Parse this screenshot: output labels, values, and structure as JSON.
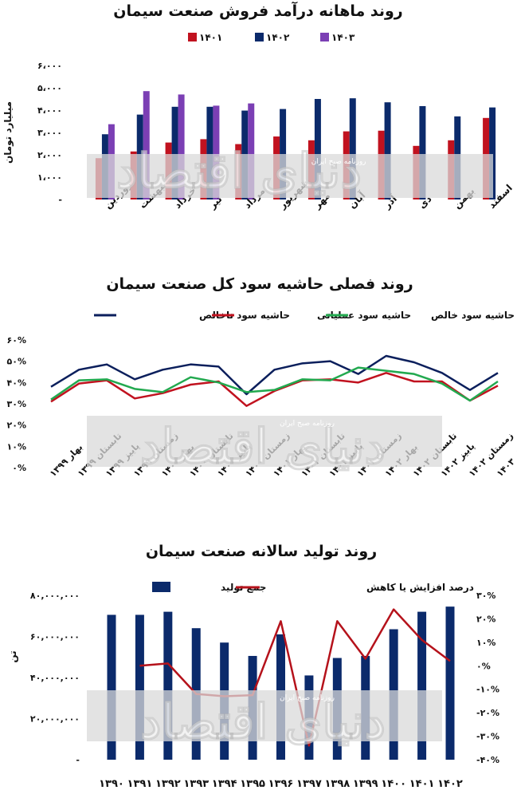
{
  "charts": [
    {
      "title": "روند ماهانه درآمد فروش صنعت سیمان",
      "ylabel": "میلیارد تومان",
      "watermark_small": "روزنامه صبح ایران",
      "watermark_big": "دنیای اقتصاد"
    },
    {
      "title": "روند فصلی حاشیه سود کل صنعت سیمان",
      "watermark_small": "روزنامه صبح ایران",
      "watermark_big": "دنیای اقتصاد"
    },
    {
      "title": "روند تولید سالانه صنعت سیمان",
      "ylabel": "تن",
      "watermark_small": "روزنامه صبح ایران",
      "watermark_big": "دنیای اقتصاد"
    }
  ],
  "chart_data": [
    {
      "type": "bar",
      "title": "روند ماهانه درآمد فروش صنعت سیمان",
      "ylabel": "میلیارد تومان",
      "xlabel": "",
      "categories": [
        "فروردین",
        "اردیبهشت",
        "خرداد",
        "تیر",
        "مرداد",
        "شهریور",
        "مهر",
        "آبان",
        "آذر",
        "دی",
        "بهمن",
        "اسفند"
      ],
      "ylim": [
        0,
        6000
      ],
      "yticks": [
        "-",
        "۱،۰۰۰",
        "۲،۰۰۰",
        "۳،۰۰۰",
        "۴،۰۰۰",
        "۵،۰۰۰",
        "۶،۰۰۰"
      ],
      "legend_position": "top",
      "series": [
        {
          "name": "۱۴۰۱",
          "color": "#c1121f",
          "values": [
            1850,
            2150,
            2550,
            2700,
            2480,
            2820,
            2650,
            3050,
            3080,
            2400,
            2650,
            3650
          ]
        },
        {
          "name": "۱۴۰۲",
          "color": "#0b2a6b",
          "values": [
            2920,
            3800,
            4150,
            4150,
            3980,
            4050,
            4500,
            4530,
            4350,
            4180,
            3720,
            4120
          ]
        },
        {
          "name": "۱۴۰۳",
          "color": "#7b3fb4",
          "values": [
            3370,
            4850,
            4700,
            4200,
            4300,
            null,
            null,
            null,
            null,
            null,
            null,
            null
          ]
        }
      ]
    },
    {
      "type": "line",
      "title": "روند فصلی حاشیه سود کل صنعت سیمان",
      "categories": [
        "بهار ۱۳۹۹",
        "تابستان ۱۳۹۹",
        "پاییز ۱۳۹۹",
        "زمستان ۱۳۹۹",
        "بهار ۱۴۰۰",
        "تابستان ۱۴۰۰",
        "پاییز ۱۴۰۰",
        "زمستان ۱۴۰۰",
        "بهار ۱۴۰۱",
        "تابستان ۱۴۰۱",
        "پاییز ۱۴۰۱",
        "زمستان ۱۴۰۱",
        "بهار ۱۴۰۲",
        "تابستان ۱۴۰۲",
        "پاییز ۱۴۰۲",
        "زمستان ۱۴۰۲",
        "بهار ۱۴۰۳"
      ],
      "ylim": [
        0,
        60
      ],
      "yticks": [
        "۰%",
        "۱۰%",
        "۲۰%",
        "۳۰%",
        "۴۰%",
        "۵۰%",
        "۶۰%"
      ],
      "legend_position": "top",
      "series": [
        {
          "name": "حاشیه سود ناخالص",
          "color": "#0b1f5c",
          "values": [
            38,
            46,
            48.5,
            41.5,
            46,
            48.5,
            47.5,
            34.5,
            46,
            49,
            50,
            44,
            52.5,
            49.5,
            44.5,
            36.5,
            44.5
          ]
        },
        {
          "name": "حاشیه سود عملیاتی",
          "color": "#c1121f",
          "values": [
            31,
            39.5,
            41,
            32.5,
            35,
            39,
            40.5,
            29,
            36,
            41,
            41.5,
            40,
            44.5,
            40.5,
            40.5,
            31.5,
            38.5
          ]
        },
        {
          "name": "حاشیه سود خالص",
          "color": "#22a94f",
          "values": [
            32,
            41,
            41.5,
            37,
            35.5,
            42.5,
            40,
            35.5,
            36.5,
            41.5,
            41,
            47,
            45.5,
            44,
            39.5,
            31.5,
            40.5
          ]
        }
      ]
    },
    {
      "type": "bar",
      "title": "روند تولید سالانه صنعت سیمان",
      "ylabel": "تن",
      "categories": [
        "۱۳۹۰",
        "۱۳۹۱",
        "۱۳۹۲",
        "۱۳۹۳",
        "۱۳۹۴",
        "۱۳۹۵",
        "۱۳۹۶",
        "۱۳۹۷",
        "۱۳۹۸",
        "۱۳۹۹",
        "۱۴۰۰",
        "۱۴۰۱",
        "۱۴۰۲"
      ],
      "ylim": [
        0,
        80000000
      ],
      "yticks": [
        "-",
        "۲۰,۰۰۰,۰۰۰",
        "۴۰,۰۰۰,۰۰۰",
        "۶۰,۰۰۰,۰۰۰",
        "۸۰,۰۰۰,۰۰۰"
      ],
      "y2lim": [
        -40,
        30
      ],
      "y2ticks": [
        "-۴۰%",
        "-۳۰%",
        "-۲۰%",
        "-۱۰%",
        "۰%",
        "۱۰%",
        "۲۰%",
        "۳۰%"
      ],
      "legend_position": "top",
      "series": [
        {
          "name": "جمع تولید",
          "color": "#0b2a6b",
          "kind": "bar",
          "values": [
            70500000,
            70500000,
            72000000,
            64000000,
            57000000,
            50500000,
            61000000,
            41000000,
            49500000,
            50500000,
            63500000,
            72000000,
            74500000
          ]
        },
        {
          "name": "درصد افزایش یا کاهش",
          "color": "#b5121b",
          "kind": "line",
          "axis": "right",
          "values": [
            null,
            0,
            1,
            -12,
            -13,
            -12.5,
            19,
            -34,
            19,
            3,
            24,
            11,
            2
          ]
        }
      ]
    }
  ]
}
